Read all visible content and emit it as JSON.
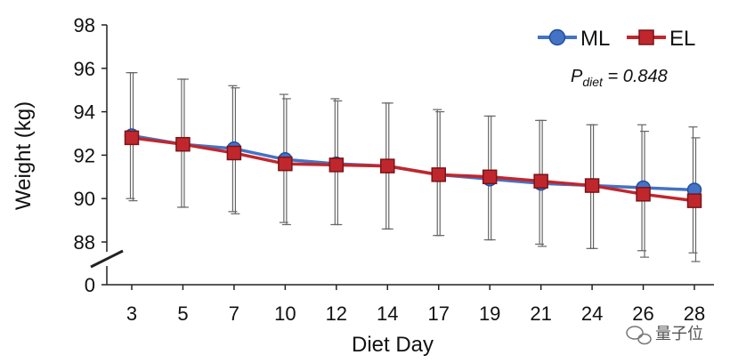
{
  "chart_data": {
    "type": "line",
    "title": "",
    "xlabel": "Diet Day",
    "ylabel": "Weight (kg)",
    "categories": [
      "3",
      "5",
      "7",
      "10",
      "12",
      "14",
      "17",
      "19",
      "21",
      "24",
      "26",
      "28"
    ],
    "ylim": [
      88,
      98
    ],
    "y_ticks": [
      "98",
      "96",
      "94",
      "92",
      "90",
      "88",
      "0"
    ],
    "axis_break": true,
    "series": [
      {
        "name": "ML",
        "color": "#4472C4",
        "marker": "circle",
        "values": [
          92.9,
          92.5,
          92.3,
          91.8,
          91.6,
          91.5,
          91.1,
          90.9,
          90.7,
          90.6,
          90.5,
          90.4
        ],
        "error_upper": [
          95.8,
          95.5,
          95.2,
          94.8,
          94.6,
          94.4,
          94.1,
          93.8,
          93.6,
          93.4,
          93.4,
          93.3
        ],
        "error_lower": [
          90.0,
          89.6,
          89.4,
          88.9,
          88.8,
          88.6,
          88.3,
          88.1,
          87.9,
          87.7,
          87.6,
          87.5
        ]
      },
      {
        "name": "EL",
        "color": "#C0272D",
        "marker": "square",
        "values": [
          92.8,
          92.5,
          92.1,
          91.6,
          91.55,
          91.5,
          91.1,
          91.0,
          90.8,
          90.6,
          90.2,
          89.9
        ],
        "error_upper": [
          95.8,
          95.5,
          95.1,
          94.6,
          94.5,
          94.4,
          94.0,
          93.8,
          93.6,
          93.4,
          93.1,
          92.8
        ],
        "error_lower": [
          89.9,
          89.6,
          89.3,
          88.8,
          88.8,
          88.6,
          88.3,
          88.1,
          87.8,
          87.7,
          87.3,
          87.1
        ]
      }
    ],
    "legend": {
      "position": "top-right"
    },
    "annotation": {
      "prefix": "P",
      "subscript": "diet",
      "suffix": " = 0.848"
    },
    "watermark": "量子位"
  }
}
